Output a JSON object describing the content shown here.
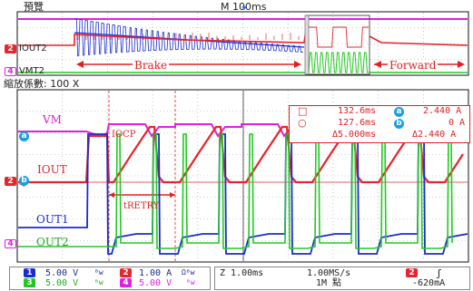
{
  "colors": {
    "ch1": "#1a2bd0",
    "ch2": "#e8242c",
    "ch3": "#22c822",
    "ch4": "#e020e0",
    "grid": "#9aa0a6",
    "panel_border": "#111111"
  },
  "header": {
    "preview_label": "預覽",
    "timebase_label": "M 100ms"
  },
  "overview": {
    "channel_iout": {
      "badge": "2",
      "label": "IOUT2"
    },
    "channel_vm": {
      "badge": "4",
      "label": "VMT2"
    },
    "brake_label": "Brake",
    "forward_label": "Forward"
  },
  "zoom": {
    "factor_label": "縮放係數: 100 X"
  },
  "waveform_labels": {
    "vm": "VM",
    "iocp": "IOCP",
    "iout": "IOUT",
    "tretry": "tRETRY",
    "out1": "OUT1",
    "out2": "OUT2"
  },
  "marker_badges": {
    "a": "a",
    "b": "b",
    "ch2": "2",
    "ch4": "4"
  },
  "cursors": {
    "row1": {
      "sym": "□",
      "time": "132.6ms",
      "badge": "a",
      "value": "2.440 A"
    },
    "row2": {
      "sym": "○",
      "time": "127.6ms",
      "badge": "b",
      "value": "0 A"
    },
    "row3": {
      "delta_time": "Δ5.000ms",
      "delta_value": "Δ2.440 A"
    }
  },
  "status": {
    "ch1": {
      "badge": "1",
      "value": "5.00 V",
      "suffix": "ᴮw"
    },
    "ch2": {
      "badge": "2",
      "value": "1.00 A",
      "suffix": "Ωᴮw"
    },
    "ch3": {
      "badge": "3",
      "value": "5.00 V",
      "suffix": "ᴮw"
    },
    "ch4": {
      "badge": "4",
      "value": "5.00 V",
      "suffix": "ᴮw"
    },
    "zoom_time": "Z 1.00ms",
    "sample_rate": "1.00MS/s",
    "record_length": "1M 點",
    "trigger_badge": "2",
    "trigger_slope": "ʃ",
    "trigger_level": "-620mA"
  }
}
